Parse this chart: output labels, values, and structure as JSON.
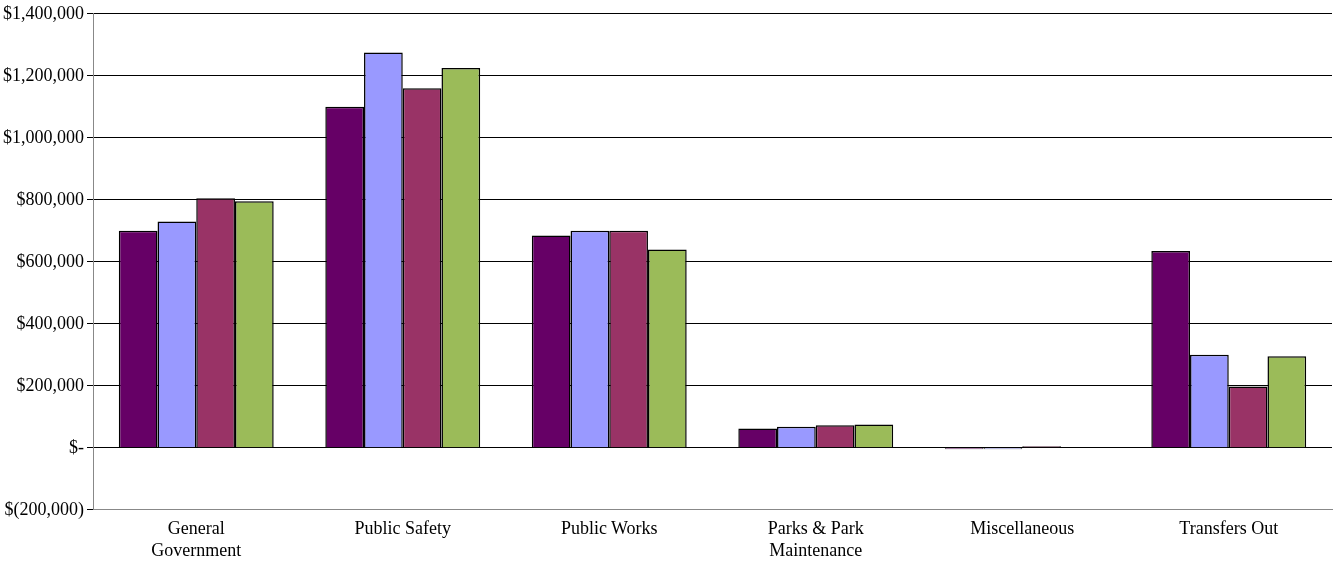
{
  "chart_data": {
    "type": "bar",
    "categories": [
      "General Government",
      "Public Safety",
      "Public Works",
      "Parks & Park Maintenance",
      "Miscellaneous",
      "Transfers Out"
    ],
    "series": [
      {
        "color": "#660066",
        "values": [
          700000,
          1100000,
          685000,
          62000,
          -5000,
          635000
        ]
      },
      {
        "color": "#9999ff",
        "values": [
          730000,
          1275000,
          700000,
          68000,
          -5000,
          300000
        ]
      },
      {
        "color": "#993366",
        "values": [
          805000,
          1160000,
          700000,
          73000,
          5000,
          198000
        ]
      },
      {
        "color": "#9bbb59",
        "values": [
          795000,
          1225000,
          640000,
          75000,
          null,
          295000
        ]
      }
    ],
    "ylim": [
      -200000,
      1400000
    ],
    "yticks": [
      {
        "value": -200000,
        "label": "$(200,000)"
      },
      {
        "value": 0,
        "label": "$-"
      },
      {
        "value": 200000,
        "label": "$200,000"
      },
      {
        "value": 400000,
        "label": "$400,000"
      },
      {
        "value": 600000,
        "label": "$600,000"
      },
      {
        "value": 800000,
        "label": "$800,000"
      },
      {
        "value": 1000000,
        "label": "$1,000,000"
      },
      {
        "value": 1200000,
        "label": "$1,200,000"
      },
      {
        "value": 1400000,
        "label": "$1,400,000"
      }
    ],
    "grid": "y",
    "legend": false
  }
}
